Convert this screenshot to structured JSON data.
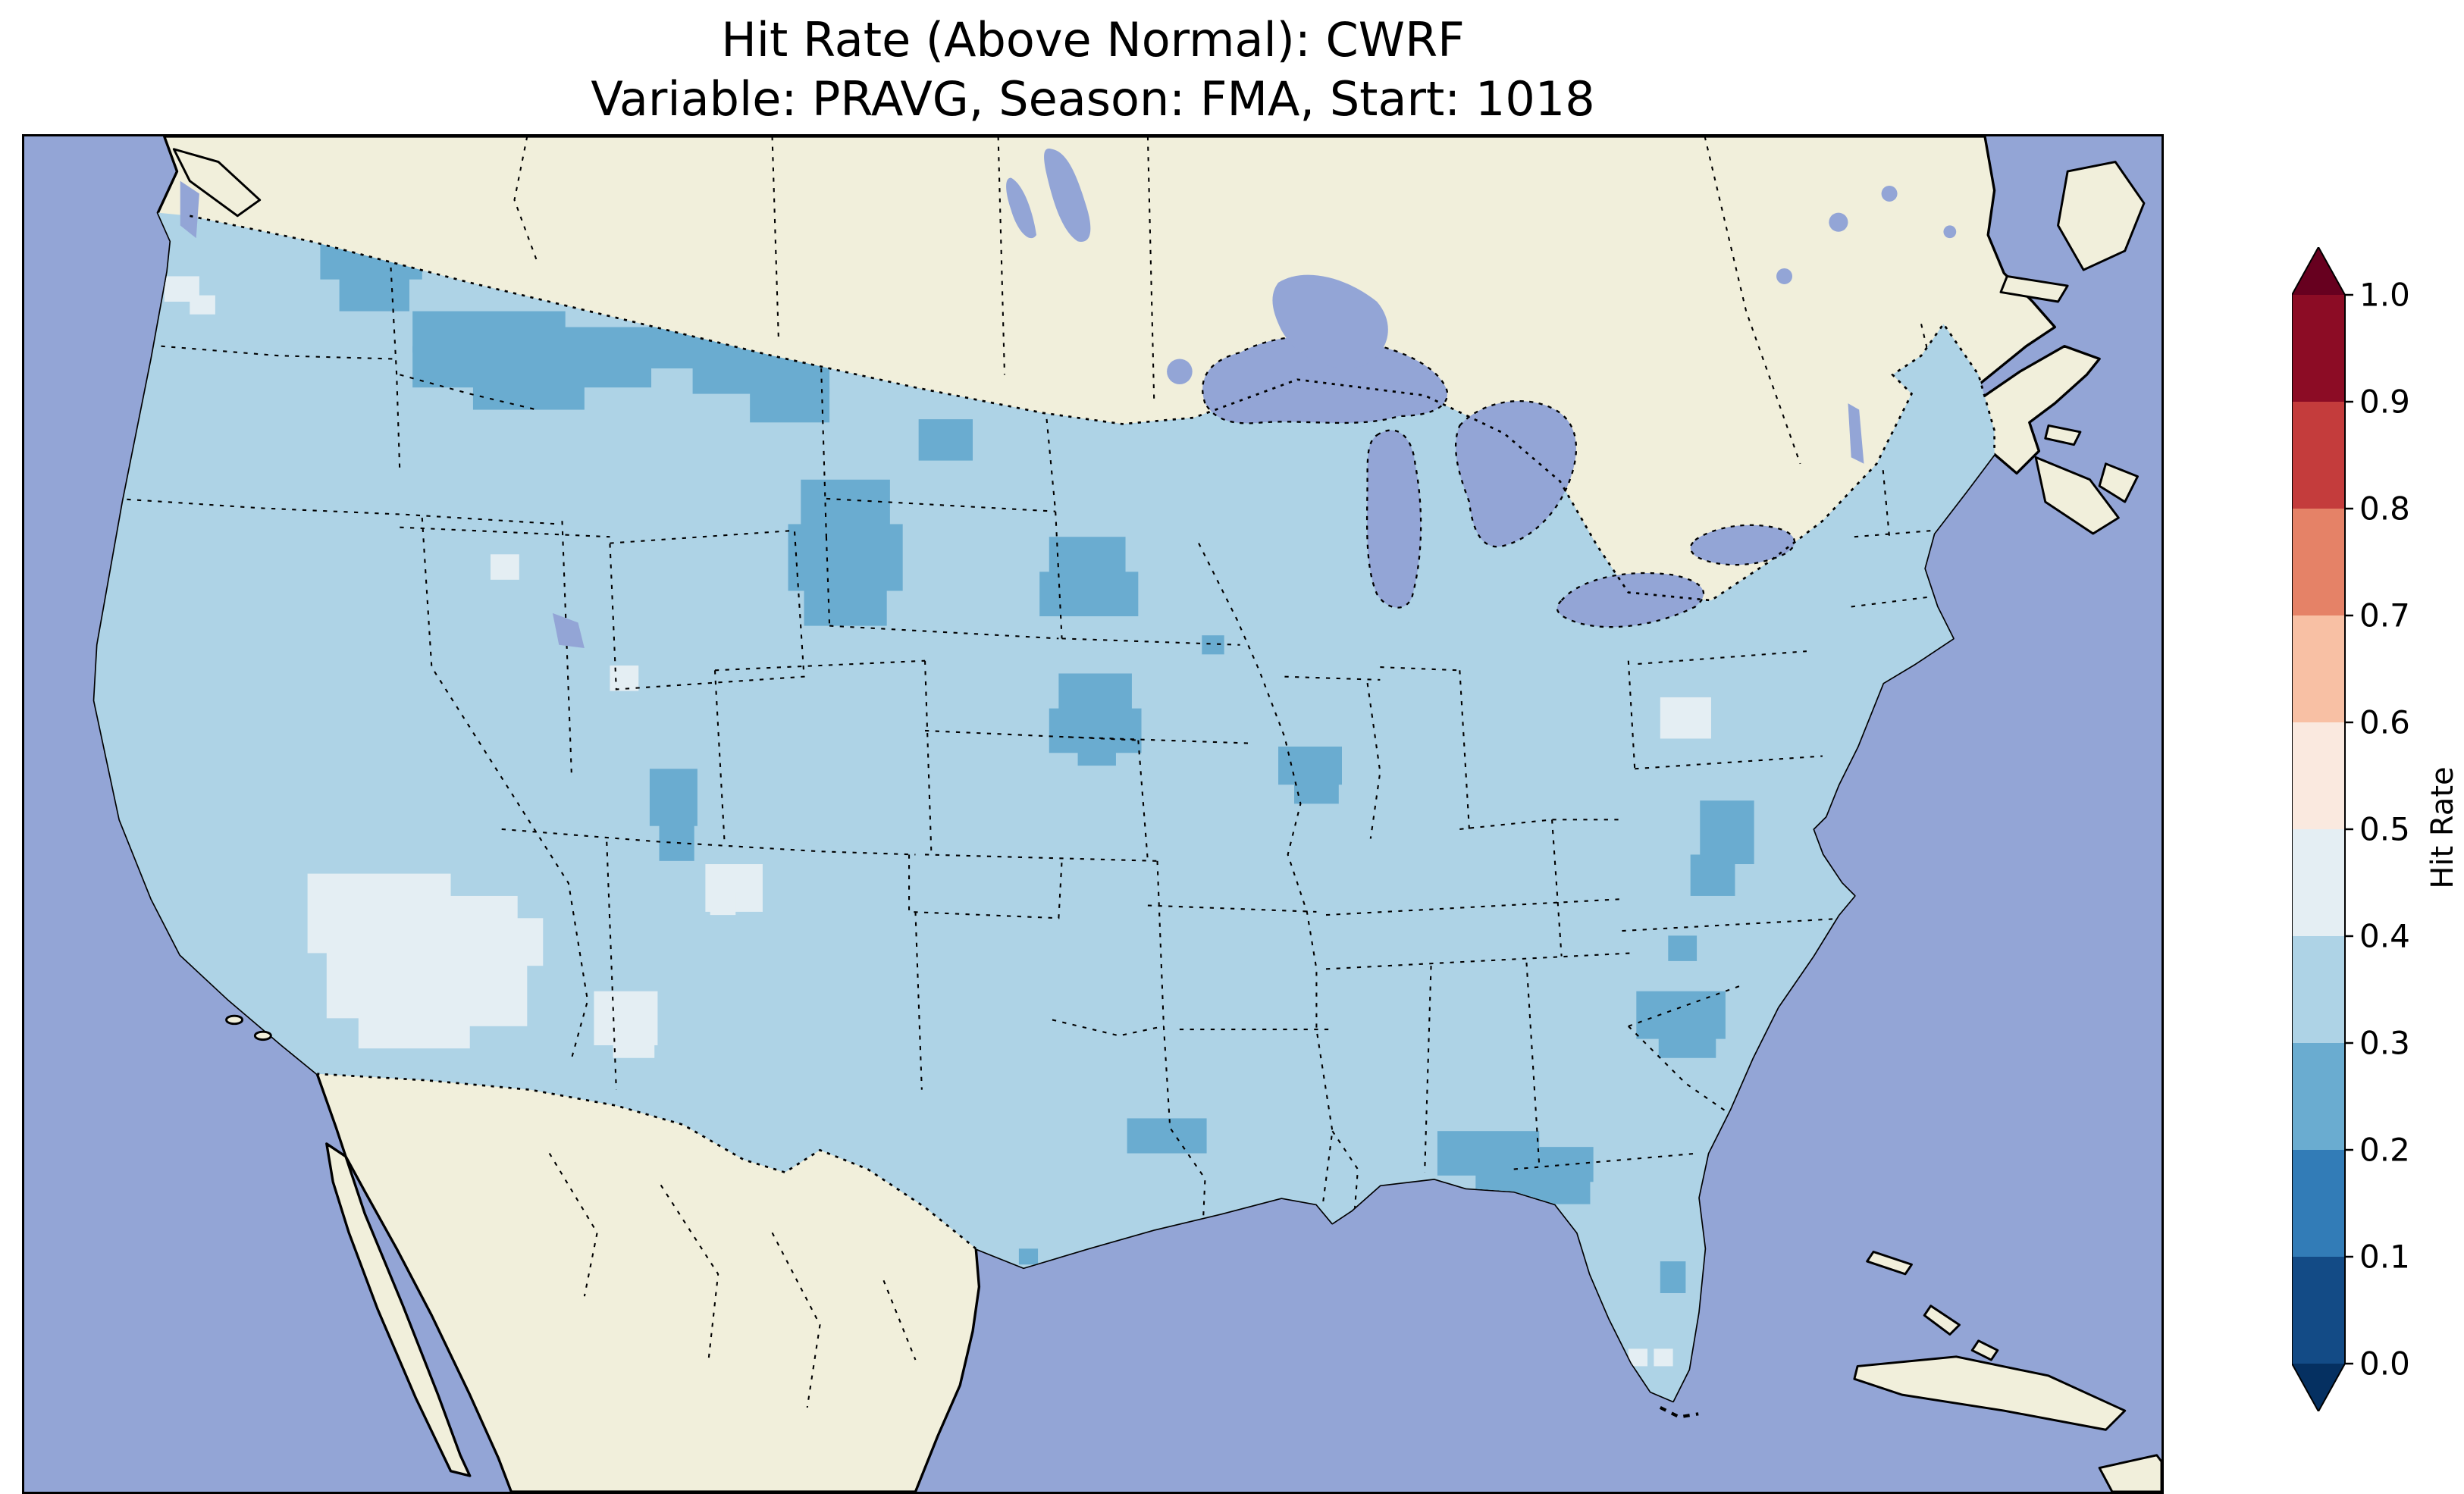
{
  "figure": {
    "title_line1": "Hit Rate (Above Normal): CWRF",
    "title_line2": "Variable: PRAVG, Season: FMA, Start: 1018"
  },
  "colorbar": {
    "label": "Hit Rate",
    "ticks": [
      "1.0",
      "0.9",
      "0.8",
      "0.7",
      "0.6",
      "0.5",
      "0.4",
      "0.3",
      "0.2",
      "0.1",
      "0.0"
    ],
    "bin_edges": [
      0.0,
      0.1,
      0.2,
      0.3,
      0.4,
      0.5,
      0.6,
      0.7,
      0.8,
      0.9,
      1.0
    ],
    "bin_colors_bottom_to_top": [
      "#134b86",
      "#327cb7",
      "#6aacd0",
      "#aed3e6",
      "#e4eef3",
      "#fae9df",
      "#f8c0a4",
      "#e58267",
      "#c43c3c",
      "#8c0c25"
    ],
    "extend_below_color": "#053061",
    "extend_above_color": "#67001f",
    "outline_color": "#000000"
  },
  "map": {
    "colors": {
      "ocean": "#93a5d6",
      "land": "#f1efdb",
      "us_base": "#aed3e6",
      "patch_dark": "#6aacd0",
      "patch_light": "#e4eef3",
      "lake": "#93a5d6",
      "coastline": "#000000",
      "border": "#000000"
    }
  },
  "chart_data": {
    "type": "heatmap",
    "title": "Hit Rate (Above Normal): CWRF",
    "subtitle": "Variable: PRAVG, Season: FMA, Start: 1018",
    "model": "CWRF",
    "metric": "Hit Rate (Above Normal)",
    "variable": "PRAVG",
    "season": "FMA",
    "start": "1018",
    "region": "Continental United States (Lambert Conformal style map)",
    "colorbar_label": "Hit Rate",
    "value_range": [
      0.0,
      1.0
    ],
    "colormap": "RdBu_r, discrete 0.1-wide bins with extend triangles",
    "legend_position": "right",
    "observations": [
      {
        "area": "Most of the contiguous United States",
        "hit_rate": "0.3-0.4"
      },
      {
        "area": "Northern Montana band into western North Dakota",
        "hit_rate": "0.2-0.3"
      },
      {
        "area": "Central/western South Dakota",
        "hit_rate": "0.2-0.3"
      },
      {
        "area": "Central Minnesota",
        "hit_rate": "0.2-0.3"
      },
      {
        "area": "Central Iowa",
        "hit_rate": "0.2-0.3"
      },
      {
        "area": "Northwest Washington / Idaho panhandle",
        "hit_rate": "0.2-0.3"
      },
      {
        "area": "Southern Wisconsin / northern Illinois",
        "hit_rate": "0.2-0.3"
      },
      {
        "area": "Central Utah",
        "hit_rate": "0.2-0.3"
      },
      {
        "area": "Coastal Virginia / Chesapeake region",
        "hit_rate": "0.2-0.3"
      },
      {
        "area": "Central North Carolina",
        "hit_rate": "0.2-0.3"
      },
      {
        "area": "Central Georgia into eastern Alabama",
        "hit_rate": "0.2-0.3"
      },
      {
        "area": "Eastern Oklahoma / Arkansas border",
        "hit_rate": "0.2-0.3"
      },
      {
        "area": "Arizona and western New Mexico (large pale patch)",
        "hit_rate": "0.4-0.5"
      },
      {
        "area": "Scattered cells in Nevada, Wyoming, Colorado, Pennsylvania, Florida",
        "hit_rate": "0.4-0.5"
      }
    ]
  }
}
